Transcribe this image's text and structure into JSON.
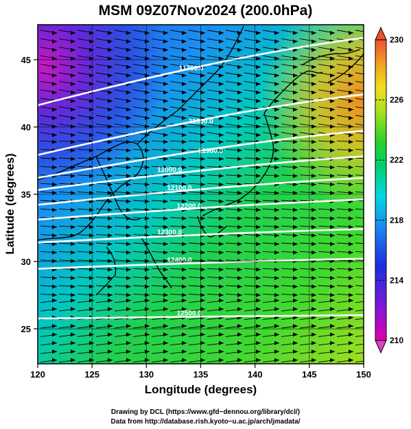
{
  "title": "MSM 09Z07Nov2024 (200.0hPa)",
  "x_axis": {
    "label": "Longitude (degrees)",
    "ticks": [
      "120",
      "125",
      "130",
      "135",
      "140",
      "145",
      "150"
    ],
    "range": [
      120,
      150
    ]
  },
  "y_axis": {
    "label": "Latitude  (degrees)",
    "ticks": [
      "25",
      "30",
      "35",
      "40",
      "45"
    ],
    "range": [
      22.4,
      47.6
    ]
  },
  "colorbar": {
    "ticks": [
      "230",
      "226",
      "222",
      "218",
      "214",
      "210"
    ],
    "range": [
      210,
      230
    ],
    "units": ""
  },
  "contours": [
    {
      "label": "11700.0",
      "lat": 44.0
    },
    {
      "label": "11800.0",
      "lat": 40.0
    },
    {
      "label": "11900.0",
      "lat": 37.7
    },
    {
      "label": "12000.0",
      "lat": 36.2
    },
    {
      "label": "12100.0",
      "lat": 34.8
    },
    {
      "label": "12200.0",
      "lat": 33.4
    },
    {
      "label": "12300.0",
      "lat": 31.4
    },
    {
      "label": "12400.0",
      "lat": 29.3
    },
    {
      "label": "12500.0",
      "lat": 25.3
    }
  ],
  "credits": {
    "line1": "Drawing by DCL (https://www.gfd−dennou.org/library/dcl/)",
    "line2": "Data from http://database.rish.kyoto−u.ac.jp/arch/jmadata/"
  },
  "colors": {
    "contour": "#ffffff",
    "streamline": "#000000",
    "coastline": "#000000"
  }
}
